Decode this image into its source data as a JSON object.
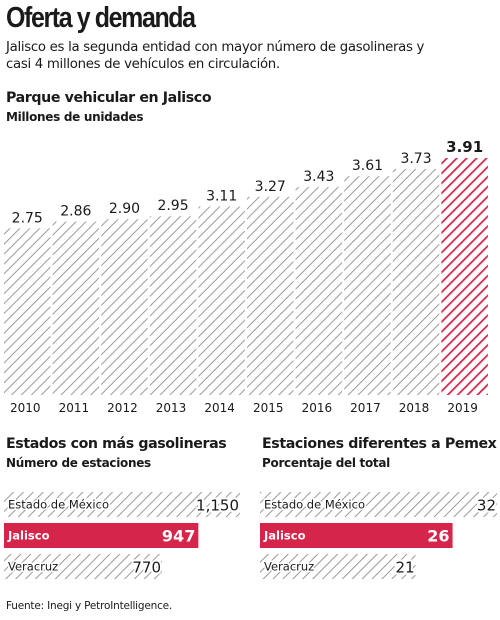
{
  "header": {
    "title": "Oferta y demanda",
    "subtitle": "Jalisco es la segunda entidad con mayor número de gasolineras y casi 4 millones de vehículos en circulación."
  },
  "colors": {
    "highlight": "#d6254a",
    "hatch": "#9a9a9a",
    "text": "#1a1a1a"
  },
  "chart_data": [
    {
      "type": "bar",
      "title": "Parque vehicular en Jalisco",
      "subtitle": "Millones de unidades",
      "categories": [
        "2010",
        "2011",
        "2012",
        "2013",
        "2014",
        "2015",
        "2016",
        "2017",
        "2018",
        "2019"
      ],
      "values": [
        2.75,
        2.86,
        2.9,
        2.95,
        3.11,
        3.27,
        3.43,
        3.61,
        3.73,
        3.91
      ],
      "value_labels": [
        "2.75",
        "2.86",
        "2.90",
        "2.95",
        "3.11",
        "3.27",
        "3.43",
        "3.61",
        "3.73",
        "3.91"
      ],
      "highlight_index": 9,
      "ylim": [
        0,
        3.91
      ],
      "orientation": "vertical"
    },
    {
      "type": "bar",
      "title": "Estados con más gasolineras",
      "subtitle": "Número de estaciones",
      "categories": [
        "Estado de México",
        "Jalisco",
        "Veracruz"
      ],
      "values": [
        1150,
        947,
        770
      ],
      "value_labels": [
        "1,150",
        "947",
        "770"
      ],
      "highlight_index": 1,
      "orientation": "horizontal"
    },
    {
      "type": "bar",
      "title": "Estaciones diferentes a Pemex",
      "subtitle": "Porcentaje del total",
      "categories": [
        "Estado de México",
        "Jalisco",
        "Veracruz"
      ],
      "values": [
        32,
        26,
        21
      ],
      "value_labels": [
        "32",
        "26",
        "21"
      ],
      "highlight_index": 1,
      "orientation": "horizontal"
    }
  ],
  "footer": {
    "source": "Fuente: Inegi y PetroIntelligence."
  }
}
